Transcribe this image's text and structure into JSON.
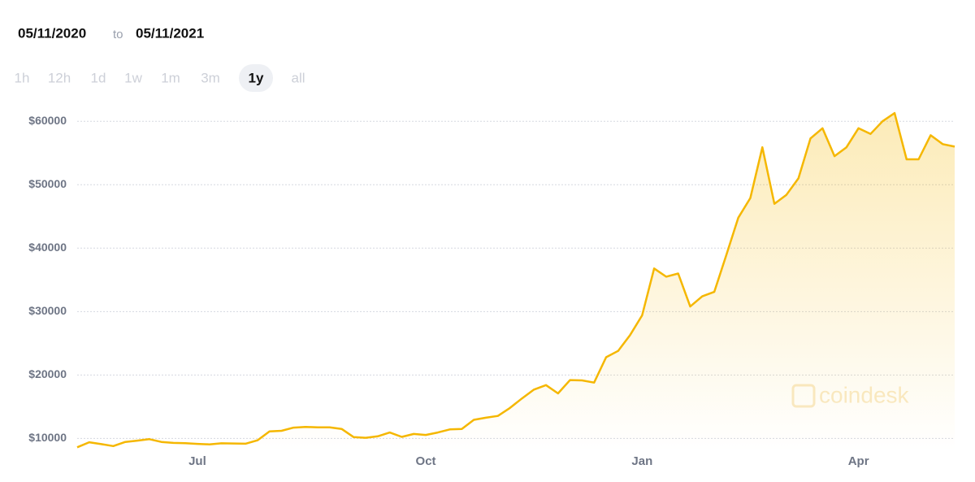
{
  "date_range": {
    "from": "05/11/2020",
    "separator": "to",
    "to": "05/11/2021"
  },
  "range_buttons": [
    "1h",
    "12h",
    "1d",
    "1w",
    "1m",
    "3m",
    "1y",
    "all"
  ],
  "selected_range": "1y",
  "watermark": "coindesk",
  "chart_data": {
    "type": "area",
    "color": "#f5b700",
    "grid": true,
    "categories": [
      null,
      null,
      null,
      null,
      null,
      null,
      null,
      null,
      null,
      null,
      "Jul",
      null,
      null,
      null,
      null,
      null,
      null,
      null,
      null,
      null,
      null,
      null,
      null,
      null,
      null,
      null,
      null,
      null,
      null,
      "Oct",
      null,
      null,
      null,
      null,
      null,
      null,
      null,
      null,
      null,
      null,
      null,
      null,
      null,
      null,
      null,
      null,
      null,
      "Jan",
      null,
      null,
      null,
      null,
      null,
      null,
      null,
      null,
      null,
      null,
      null,
      null,
      null,
      null,
      null,
      null,
      null,
      "Apr",
      null,
      null,
      null,
      null,
      null,
      null,
      null,
      null
    ],
    "values": [
      8600,
      9400,
      9100,
      8800,
      9450,
      9650,
      9880,
      9450,
      9300,
      9250,
      9140,
      9070,
      9230,
      9200,
      9160,
      9700,
      11100,
      11200,
      11700,
      11800,
      11750,
      11750,
      11500,
      10200,
      10100,
      10330,
      10940,
      10240,
      10700,
      10550,
      10930,
      11420,
      11500,
      12930,
      13270,
      13550,
      14800,
      16300,
      17700,
      18400,
      17100,
      19200,
      19150,
      18800,
      22800,
      23800,
      26300,
      29400,
      36800,
      35500,
      36000,
      30800,
      32400,
      33100,
      38900,
      44800,
      47900,
      55900,
      47000,
      48400,
      51000,
      57300,
      58900,
      54500,
      55900,
      58900,
      58000,
      60000,
      61300,
      54000,
      54000,
      57800,
      56400,
      56000
    ],
    "ylim": [
      8000,
      64000
    ],
    "yticks": [
      {
        "value": 10000,
        "label": "$10000"
      },
      {
        "value": 20000,
        "label": "$20000"
      },
      {
        "value": 30000,
        "label": "$30000"
      },
      {
        "value": 40000,
        "label": "$40000"
      },
      {
        "value": 50000,
        "label": "$50000"
      },
      {
        "value": 60000,
        "label": "$60000"
      }
    ]
  }
}
